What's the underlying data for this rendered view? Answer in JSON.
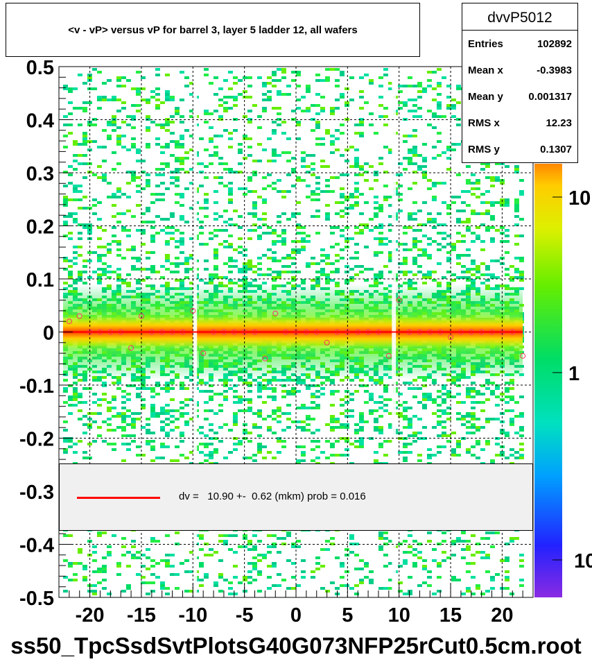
{
  "title": "<v - vP>       versus   vP for barrel 3, layer 5 ladder 12, all wafers",
  "stats": {
    "name": "dvvP5012",
    "rows": [
      {
        "label": "Entries",
        "value": "102892"
      },
      {
        "label": "Mean x",
        "value": "-0.3983"
      },
      {
        "label": "Mean y",
        "value": "0.001317"
      },
      {
        "label": "RMS x",
        "value": "12.23"
      },
      {
        "label": "RMS y",
        "value": "0.1307"
      }
    ]
  },
  "legend": {
    "line_color": "#ff0000",
    "text": "dv =   10.90 +-  0.62 (mkm) prob = 0.016"
  },
  "footer": "ss50_TpcSsdSvtPlotsG40G073NFP25rCut0.5cm.root",
  "chart_data": {
    "type": "heatmap",
    "title": "<v - vP>       versus   vP for barrel 3, layer 5 ladder 12, all wafers",
    "xlabel": "",
    "ylabel": "",
    "xlim": [
      -23,
      23
    ],
    "ylim": [
      -0.5,
      0.5
    ],
    "x_ticks": [
      -20,
      -15,
      -10,
      -5,
      0,
      5,
      10,
      15,
      20
    ],
    "x_tick_labels": [
      "-20",
      "-15",
      "-10",
      "-5",
      "0",
      "5",
      "10",
      "15",
      "20"
    ],
    "y_ticks": [
      -0.5,
      -0.4,
      -0.3,
      -0.2,
      -0.1,
      0,
      0.1,
      0.2,
      0.3,
      0.4,
      0.5
    ],
    "y_tick_labels": [
      "-0.5",
      "-0.4",
      "-0.3",
      "-0.2",
      "-0.1",
      "0",
      "0.1",
      "0.2",
      "0.3",
      "0.4",
      "0.5"
    ],
    "grid": true,
    "colorbar": {
      "scale": "log",
      "tick_labels": [
        "10",
        "1",
        "10"
      ]
    },
    "colors": {
      "low": "#8a2be2",
      "mid": "#00d070",
      "high": "#ff0000",
      "fit_line": "#ff0000",
      "marker": "#ff3366"
    },
    "gap_columns_x": [
      -9.8,
      9.5
    ],
    "profile": {
      "x": [
        -22,
        -21,
        -20,
        -19,
        -18,
        -17,
        -16,
        -15,
        -14,
        -13,
        -12,
        -11,
        -10,
        -9,
        -8,
        -7,
        -6,
        -5,
        -4,
        -3,
        -2,
        -1,
        0,
        1,
        2,
        3,
        4,
        5,
        6,
        7,
        8,
        9,
        10,
        11,
        12,
        13,
        14,
        15,
        16,
        17,
        18,
        19,
        20,
        21,
        22
      ],
      "y": [
        0.02,
        0.03,
        0.0,
        0.0,
        0.0,
        0.0,
        -0.03,
        0.03,
        0.0,
        0.0,
        0.0,
        0.0,
        0.04,
        -0.04,
        0.0,
        0.0,
        0.0,
        0.0,
        0.0,
        -0.05,
        0.035,
        0.0,
        0.0,
        0.0,
        0.0,
        -0.02,
        0.0,
        0.0,
        0.0,
        0.0,
        0.0,
        -0.045,
        0.06,
        0.0,
        0.0,
        0.0,
        0.0,
        -0.01,
        0.0,
        0.0,
        0.0,
        0.0,
        0.0,
        0.0,
        -0.045
      ]
    },
    "fit": {
      "slope": 0.0,
      "intercept": 0.0
    }
  }
}
